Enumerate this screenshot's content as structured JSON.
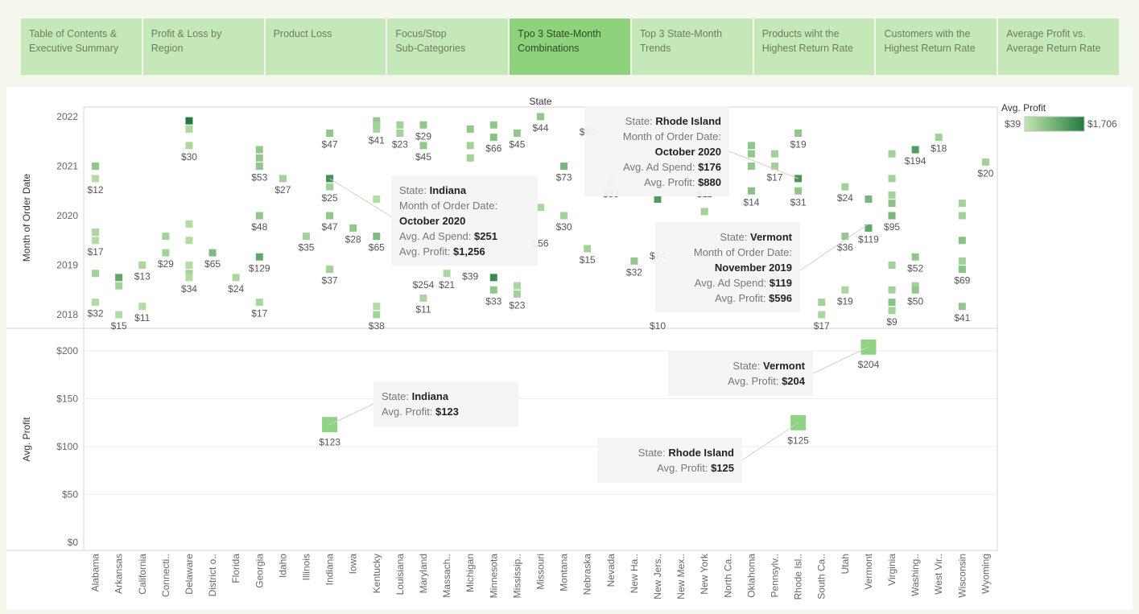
{
  "tabs": [
    {
      "label": "Table of Contents &\nExecutive Summary"
    },
    {
      "label": "Profit & Loss by Region"
    },
    {
      "label": "Product Loss"
    },
    {
      "label": "Focus/Stop\nSub-Categories"
    },
    {
      "label": "Tpo 3 State-Month\nCombinations",
      "active": true
    },
    {
      "label": "Top 3 State-Month\nTrends"
    },
    {
      "label": "Products wiht the\nHighest Return Rate"
    },
    {
      "label": "Customers with the\nHighest Return Rate"
    },
    {
      "label": "Average Profit vs.\nAverage Return Rate"
    }
  ],
  "colors": {
    "light": "#c2e7b0",
    "dark": "#237a3c",
    "mid": "#7ccb6f",
    "tab": "#c4e8b8",
    "tab_active": "#8ed37c"
  },
  "legend": {
    "title": "Avg. Profit",
    "min_label": "$39",
    "max_label": "$1,706"
  },
  "chart_data": [
    {
      "type": "heatmap",
      "title": "State",
      "ylabel": "Month of Order Date",
      "y_ticks": [
        "2018",
        "2019",
        "2020",
        "2021",
        "2022"
      ],
      "categories": [
        "Alabama",
        "Arkansas",
        "California",
        "Connecti..",
        "Delaware",
        "District o..",
        "Florida",
        "Georgia",
        "Idaho",
        "Illinois",
        "Indiana",
        "Iowa",
        "Kentucky",
        "Louisiana",
        "Maryland",
        "Massach..",
        "Michigan",
        "Minnesota",
        "Mississip..",
        "Missouri",
        "Montana",
        "Nebraska",
        "Nevada",
        "New Ha..",
        "New Jers..",
        "New Mex..",
        "New York",
        "North Ca..",
        "Oklahoma",
        "Pennsylv..",
        "Rhode Isl..",
        "South Ca..",
        "Utah",
        "Vermont",
        "Virginia",
        "Washing..",
        "West Vir..",
        "Wisconsin",
        "Wyoming"
      ],
      "marks": [
        {
          "state": "Alabama",
          "date": "2021-01",
          "v": 0.3
        },
        {
          "state": "Alabama",
          "date": "2020-10",
          "v": 0.1,
          "label": "$12"
        },
        {
          "state": "Alabama",
          "date": "2019-09",
          "v": 0.15
        },
        {
          "state": "Alabama",
          "date": "2019-07",
          "v": 0.1,
          "label": "$17"
        },
        {
          "state": "Alabama",
          "date": "2018-11",
          "v": 0.2
        },
        {
          "state": "Alabama",
          "date": "2018-04",
          "v": 0.1,
          "label": "$32"
        },
        {
          "state": "Arkansas",
          "date": "2018-10",
          "v": 0.6
        },
        {
          "state": "Arkansas",
          "date": "2018-08",
          "v": 0.2
        },
        {
          "state": "Arkansas",
          "date": "2018-01",
          "v": 0.1,
          "label": "$15"
        },
        {
          "state": "California",
          "date": "2019-01",
          "v": 0.15,
          "label": "$13"
        },
        {
          "state": "California",
          "date": "2018-03",
          "v": 0.1,
          "label": "$11"
        },
        {
          "state": "Connecti..",
          "date": "2019-08",
          "v": 0.2
        },
        {
          "state": "Connecti..",
          "date": "2019-04",
          "v": 0.2,
          "label": "$29"
        },
        {
          "state": "Delaware",
          "date": "2021-12",
          "v": 1.0
        },
        {
          "state": "Delaware",
          "date": "2021-10",
          "v": 0.15
        },
        {
          "state": "Delaware",
          "date": "2021-06",
          "v": 0.15,
          "label": "$30"
        },
        {
          "state": "Delaware",
          "date": "2019-11",
          "v": 0.1
        },
        {
          "state": "Delaware",
          "date": "2019-07",
          "v": 0.1
        },
        {
          "state": "Delaware",
          "date": "2019-01",
          "v": 0.1
        },
        {
          "state": "Delaware",
          "date": "2018-11",
          "v": 0.2
        },
        {
          "state": "Delaware",
          "date": "2018-10",
          "v": 0.1,
          "label": "$34"
        },
        {
          "state": "District o..",
          "date": "2019-04",
          "v": 0.4,
          "label": "$65"
        },
        {
          "state": "Florida",
          "date": "2018-10",
          "v": 0.15,
          "label": "$24"
        },
        {
          "state": "Georgia",
          "date": "2021-05",
          "v": 0.3
        },
        {
          "state": "Georgia",
          "date": "2021-03",
          "v": 0.3
        },
        {
          "state": "Georgia",
          "date": "2021-01",
          "v": 0.3,
          "label": "$53"
        },
        {
          "state": "Georgia",
          "date": "2020-01",
          "v": 0.3,
          "label": "$48"
        },
        {
          "state": "Georgia",
          "date": "2019-03",
          "v": 0.6,
          "label": "$129"
        },
        {
          "state": "Georgia",
          "date": "2018-04",
          "v": 0.15,
          "label": "$17"
        },
        {
          "state": "Idaho",
          "date": "2020-10",
          "v": 0.2,
          "label": "$27"
        },
        {
          "state": "Illinois",
          "date": "2019-08",
          "v": 0.2,
          "label": "$35"
        },
        {
          "state": "Indiana",
          "date": "2021-09",
          "v": 0.3,
          "label": "$47"
        },
        {
          "state": "Indiana",
          "date": "2020-10",
          "v": 0.8
        },
        {
          "state": "Indiana",
          "date": "2020-08",
          "v": 0.2,
          "label": "$25"
        },
        {
          "state": "Indiana",
          "date": "2020-01",
          "v": 0.3,
          "label": "$47"
        },
        {
          "state": "Indiana",
          "date": "2018-12",
          "v": 0.2,
          "label": "$37"
        },
        {
          "state": "Iowa",
          "date": "2019-10",
          "v": 0.3,
          "label": "$28"
        },
        {
          "state": "Kentucky",
          "date": "2021-12",
          "v": 0.3
        },
        {
          "state": "Kentucky",
          "date": "2021-11",
          "v": 0.2
        },
        {
          "state": "Kentucky",
          "date": "2021-10",
          "v": 0.2,
          "label": "$41"
        },
        {
          "state": "Kentucky",
          "date": "2020-05",
          "v": 0.1
        },
        {
          "state": "Kentucky",
          "date": "2019-08",
          "v": 0.4,
          "label": "$65"
        },
        {
          "state": "Kentucky",
          "date": "2018-03",
          "v": 0.1
        },
        {
          "state": "Kentucky",
          "date": "2018-01",
          "v": 0.2,
          "label": "$38"
        },
        {
          "state": "Louisiana",
          "date": "2021-11",
          "v": 0.2
        },
        {
          "state": "Louisiana",
          "date": "2021-09",
          "v": 0.2,
          "label": "$23"
        },
        {
          "state": "Maryland",
          "date": "2021-11",
          "v": 0.3,
          "label": "$29"
        },
        {
          "state": "Maryland",
          "date": "2021-06",
          "v": 0.3,
          "label": "$45"
        },
        {
          "state": "Maryland",
          "date": "2018-05",
          "v": 0.15,
          "label": "$11"
        },
        {
          "state": "Massach..",
          "date": "2018-11",
          "v": 0.15,
          "label": "$21"
        },
        {
          "state": "Michigan",
          "date": "2021-10",
          "v": 0.3
        },
        {
          "state": "Michigan",
          "date": "2021-06",
          "v": 0.2
        },
        {
          "state": "Michigan",
          "date": "2021-03",
          "v": 0.2
        },
        {
          "state": "Minnesota",
          "date": "2021-11",
          "v": 0.3
        },
        {
          "state": "Minnesota",
          "date": "2021-08",
          "v": 0.35,
          "label": "$66"
        },
        {
          "state": "Minnesota",
          "date": "2018-10",
          "v": 0.85
        },
        {
          "state": "Minnesota",
          "date": "2018-07",
          "v": 0.3,
          "label": "$33"
        },
        {
          "state": "Mississip..",
          "date": "2021-09",
          "v": 0.3,
          "label": "$45"
        },
        {
          "state": "Mississip..",
          "date": "2018-08",
          "v": 0.15
        },
        {
          "state": "Mississip..",
          "date": "2018-06",
          "v": 0.2,
          "label": "$23"
        },
        {
          "state": "Missouri",
          "date": "2022-01",
          "v": 0.3,
          "label": "$44"
        },
        {
          "state": "Missouri",
          "date": "2020-03",
          "v": 0.15
        },
        {
          "state": "Montana",
          "date": "2021-01",
          "v": 0.45,
          "label": "$73"
        },
        {
          "state": "Montana",
          "date": "2020-01",
          "v": 0.2,
          "label": "$30"
        },
        {
          "state": "Nebraska",
          "date": "2019-05",
          "v": 0.2,
          "label": "$15"
        },
        {
          "state": "Nevada",
          "date": "2020-09",
          "v": 0.2,
          "label": "$33"
        },
        {
          "state": "New Ha..",
          "date": "2019-02",
          "v": 0.3,
          "label": "$32"
        },
        {
          "state": "New Jers..",
          "date": "2020-05",
          "v": 0.7
        },
        {
          "state": "New York",
          "date": "2020-02",
          "v": 0.2
        },
        {
          "state": "Oklahoma",
          "date": "2021-06",
          "v": 0.3
        },
        {
          "state": "Oklahoma",
          "date": "2021-04",
          "v": 0.3
        },
        {
          "state": "Oklahoma",
          "date": "2021-01",
          "v": 0.3
        },
        {
          "state": "Oklahoma",
          "date": "2020-07",
          "v": 0.35,
          "label": "$14"
        },
        {
          "state": "Pennsylv..",
          "date": "2021-04",
          "v": 0.2
        },
        {
          "state": "Pennsylv..",
          "date": "2021-01",
          "v": 0.2,
          "label": "$17"
        },
        {
          "state": "Rhode Isl..",
          "date": "2021-09",
          "v": 0.3,
          "label": "$19"
        },
        {
          "state": "Rhode Isl..",
          "date": "2020-10",
          "v": 0.75
        },
        {
          "state": "Rhode Isl..",
          "date": "2020-07",
          "v": 0.3,
          "label": "$31"
        },
        {
          "state": "South Ca..",
          "date": "2018-04",
          "v": 0.2
        },
        {
          "state": "South Ca..",
          "date": "2018-01",
          "v": 0.15,
          "label": "$17"
        },
        {
          "state": "Utah",
          "date": "2020-08",
          "v": 0.2,
          "label": "$24"
        },
        {
          "state": "Utah",
          "date": "2019-08",
          "v": 0.3,
          "label": "$36"
        },
        {
          "state": "Utah",
          "date": "2018-07",
          "v": 0.15,
          "label": "$19"
        },
        {
          "state": "Vermont",
          "date": "2020-05",
          "v": 0.45
        },
        {
          "state": "Vermont",
          "date": "2019-10",
          "v": 0.6,
          "label": "$119"
        },
        {
          "state": "Virginia",
          "date": "2021-04",
          "v": 0.2
        },
        {
          "state": "Virginia",
          "date": "2020-10",
          "v": 0.2
        },
        {
          "state": "Virginia",
          "date": "2020-06",
          "v": 0.2
        },
        {
          "state": "Virginia",
          "date": "2020-04",
          "v": 0.35
        },
        {
          "state": "Virginia",
          "date": "2020-01",
          "v": 0.45,
          "label": "$95"
        },
        {
          "state": "Virginia",
          "date": "2019-01",
          "v": 0.2
        },
        {
          "state": "Virginia",
          "date": "2018-07",
          "v": 0.2
        },
        {
          "state": "Virginia",
          "date": "2018-04",
          "v": 0.35
        },
        {
          "state": "Virginia",
          "date": "2018-02",
          "v": 0.2,
          "label": "$9"
        },
        {
          "state": "Washing..",
          "date": "2021-05",
          "v": 0.7,
          "label": "$194"
        },
        {
          "state": "Washing..",
          "date": "2019-03",
          "v": 0.3,
          "label": "$52"
        },
        {
          "state": "Washing..",
          "date": "2018-08",
          "v": 0.2
        },
        {
          "state": "Washing..",
          "date": "2018-07",
          "v": 0.3,
          "label": "$50"
        },
        {
          "state": "West Vir..",
          "date": "2021-08",
          "v": 0.2,
          "label": "$18"
        },
        {
          "state": "Wisconsin",
          "date": "2020-04",
          "v": 0.2
        },
        {
          "state": "Wisconsin",
          "date": "2020-01",
          "v": 0.2
        },
        {
          "state": "Wisconsin",
          "date": "2019-07",
          "v": 0.35
        },
        {
          "state": "Wisconsin",
          "date": "2019-02",
          "v": 0.2
        },
        {
          "state": "Wisconsin",
          "date": "2018-12",
          "v": 0.35,
          "label": "$69"
        },
        {
          "state": "Wisconsin",
          "date": "2018-03",
          "v": 0.3,
          "label": "$41"
        },
        {
          "state": "Wyoming",
          "date": "2021-02",
          "v": 0.2,
          "label": "$20"
        }
      ],
      "stray_labels": [
        {
          "state": "Missouri",
          "date": "2019-09",
          "text": "156"
        },
        {
          "state": "Maryland",
          "date": "2018-11",
          "text": "$254"
        },
        {
          "state": "Michigan",
          "date": "2019-01",
          "text": "$39"
        },
        {
          "state": "New Jers..",
          "date": "2019-06",
          "text": "$74"
        },
        {
          "state": "New Jers..",
          "date": "2018-01",
          "text": "$10"
        },
        {
          "state": "New York",
          "date": "2020-09",
          "text": "$11"
        },
        {
          "state": "Nebraska",
          "date": "2021-12",
          "text": "$40"
        },
        {
          "state": "Pennsylv..",
          "date": "2019-01",
          "text": "3"
        }
      ],
      "tooltips": [
        {
          "state": "Indiana",
          "date": "2020-10",
          "lines": [
            [
              "State: ",
              "Indiana"
            ],
            [
              "Month of Order Date:",
              ""
            ],
            [
              "",
              "October 2020"
            ],
            [
              "Avg. Ad Spend: ",
              "$251"
            ],
            [
              "Avg. Profit: ",
              "$1,256"
            ]
          ]
        },
        {
          "state": "Rhode Isl..",
          "date": "2020-10",
          "lines": [
            [
              "State: ",
              "Rhode Island"
            ],
            [
              "Month of Order Date:",
              ""
            ],
            [
              "",
              "October 2020"
            ],
            [
              "Avg. Ad Spend: ",
              "$176"
            ],
            [
              "Avg. Profit: ",
              "$880"
            ]
          ]
        },
        {
          "state": "Vermont",
          "date": "2019-11",
          "lines": [
            [
              "State: ",
              "Vermont"
            ],
            [
              "Month of Order Date:",
              ""
            ],
            [
              "",
              "November 2019"
            ],
            [
              "Avg. Ad Spend: ",
              "$119"
            ],
            [
              "Avg. Profit: ",
              "$596"
            ]
          ]
        }
      ]
    },
    {
      "type": "scatter",
      "ylabel": "Avg. Profit",
      "ylim": [
        0,
        200
      ],
      "y_ticks": [
        0,
        50,
        100,
        150,
        200
      ],
      "y_tick_labels": [
        "$0",
        "$50",
        "$100",
        "$150",
        "$200"
      ],
      "points": [
        {
          "state": "Indiana",
          "value": 123,
          "label": "$123"
        },
        {
          "state": "Rhode Isl..",
          "value": 125,
          "label": "$125"
        },
        {
          "state": "Vermont",
          "value": 204,
          "label": "$204"
        }
      ],
      "tooltips": [
        {
          "state": "Indiana",
          "lines": [
            [
              "State: ",
              "Indiana"
            ],
            [
              "Avg. Profit: ",
              "$123"
            ]
          ]
        },
        {
          "state": "Vermont",
          "lines": [
            [
              "State: ",
              "Vermont"
            ],
            [
              "Avg. Profit: ",
              "$204"
            ]
          ]
        },
        {
          "state": "Rhode Isl..",
          "lines": [
            [
              "State: ",
              "Rhode Island"
            ],
            [
              "Avg. Profit: ",
              "$125"
            ]
          ]
        }
      ]
    }
  ]
}
